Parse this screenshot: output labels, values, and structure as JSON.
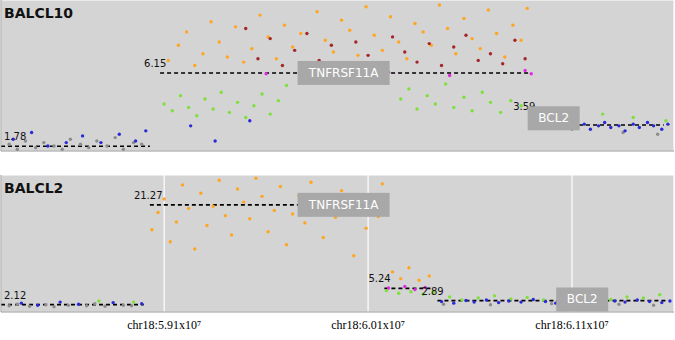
{
  "chart_data": [
    {
      "type": "scatter",
      "title": "BALCL10",
      "xlim": [
        58300000,
        61600000
      ],
      "xticks": [
        59100000,
        60100000,
        61100000
      ],
      "ylim": [
        1.5,
        10.5
      ],
      "yticks": [
        3,
        6,
        9
      ],
      "grid": true,
      "tick_labels": false,
      "marker": "circle",
      "series": [
        {
          "color": "#8c8c8c",
          "x": [
            58340000,
            58380000,
            58420000,
            58470000,
            58510000,
            58560000,
            58600000,
            58640000,
            58690000,
            58730000,
            58770000,
            58820000,
            58860000,
            58900000,
            58950000,
            58990000,
            61100000,
            61350000,
            61520000
          ],
          "values": [
            1.9,
            1.6,
            2.1,
            1.7,
            2.0,
            1.8,
            1.6,
            2.2,
            1.9,
            1.7,
            2.1,
            1.8,
            2.3,
            1.6,
            2.0,
            1.9,
            2.8,
            2.6,
            2.5
          ]
        },
        {
          "color": "#7ee03a",
          "x": [
            59100000,
            59140000,
            59180000,
            59220000,
            59260000,
            59300000,
            59340000,
            59380000,
            59420000,
            59460000,
            59500000,
            59540000,
            59580000,
            59620000,
            59660000,
            59700000,
            60260000,
            60300000,
            60340000,
            60390000,
            60430000,
            60480000,
            60520000,
            60570000,
            60610000,
            60660000,
            60700000,
            60750000,
            60800000,
            60850000,
            60920000,
            60960000,
            61000000,
            61050000,
            61250000,
            61400000,
            61560000
          ],
          "values": [
            4.3,
            3.9,
            4.8,
            4.1,
            3.6,
            4.6,
            4.0,
            5.0,
            3.8,
            4.4,
            3.5,
            4.2,
            4.9,
            3.7,
            4.5,
            5.4,
            4.6,
            5.2,
            4.0,
            4.8,
            4.3,
            5.5,
            4.1,
            4.7,
            3.9,
            5.0,
            4.4,
            3.8,
            4.5,
            4.2,
            3.6,
            4.0,
            3.4,
            3.8,
            3.7,
            3.5,
            3.3
          ]
        },
        {
          "color": "#ffa51f",
          "x": [
            59120000,
            59170000,
            59210000,
            59250000,
            59290000,
            59330000,
            59370000,
            59410000,
            59450000,
            59490000,
            59530000,
            59570000,
            59610000,
            59650000,
            59690000,
            59730000,
            59770000,
            59810000,
            59850000,
            59890000,
            59930000,
            59970000,
            60010000,
            60050000,
            60090000,
            60130000,
            60170000,
            60210000,
            60250000,
            60290000,
            60330000,
            60370000,
            60410000,
            60450000,
            60490000,
            60530000,
            60570000,
            60610000,
            60650000,
            60690000,
            60730000,
            60770000,
            60810000,
            60850000,
            60880000
          ],
          "values": [
            6.9,
            7.8,
            8.6,
            6.6,
            7.3,
            9.2,
            8.0,
            7.1,
            8.9,
            6.8,
            7.6,
            9.6,
            8.3,
            7.0,
            9.0,
            7.7,
            8.5,
            6.7,
            9.8,
            8.1,
            7.4,
            9.3,
            8.7,
            7.2,
            10.1,
            8.4,
            7.5,
            9.5,
            8.0,
            7.0,
            9.1,
            8.6,
            7.8,
            10.2,
            8.8,
            7.3,
            9.4,
            8.2,
            7.6,
            9.9,
            8.5,
            7.1,
            9.0,
            8.1,
            10.0
          ]
        },
        {
          "color": "#a5262a",
          "x": [
            59500000,
            59560000,
            59620000,
            59680000,
            59740000,
            59800000,
            59860000,
            59920000,
            59980000,
            60040000,
            60100000,
            60160000,
            60220000,
            60280000,
            60340000,
            60400000,
            60460000,
            60520000,
            60580000,
            60640000,
            60700000,
            60760000,
            60820000,
            60870000
          ],
          "values": [
            8.8,
            7.0,
            8.2,
            6.6,
            7.5,
            8.5,
            6.9,
            7.8,
            6.5,
            8.0,
            7.2,
            6.7,
            8.3,
            7.4,
            6.8,
            7.9,
            6.6,
            7.7,
            8.4,
            6.9,
            7.3,
            6.7,
            8.1,
            7.0
          ]
        },
        {
          "color": "#2a2ad8",
          "x": [
            58360000,
            58450000,
            58530000,
            58620000,
            58700000,
            58790000,
            58880000,
            58960000,
            59010000,
            59230000,
            59350000,
            59520000,
            61120000,
            61160000,
            61190000,
            61230000,
            61260000,
            61290000,
            61330000,
            61360000,
            61400000,
            61430000,
            61470000,
            61500000,
            61540000,
            61570000
          ],
          "values": [
            2.2,
            2.6,
            1.8,
            2.0,
            2.4,
            2.0,
            2.5,
            2.1,
            2.7,
            3.0,
            2.1,
            3.3,
            2.9,
            3.1,
            2.8,
            3.0,
            3.2,
            2.9,
            3.0,
            2.7,
            3.1,
            2.9,
            3.2,
            3.0,
            2.8,
            3.1
          ]
        },
        {
          "color": "#e02ae0",
          "x": [
            59600000,
            60200000,
            60500000,
            60870000,
            60900000,
            60990000,
            61020000
          ],
          "values": [
            6.1,
            6.2,
            6.0,
            6.3,
            6.1,
            3.7,
            3.5
          ]
        }
      ],
      "segments": [
        {
          "x": [
            58300000,
            59030000
          ],
          "value": 1.78
        },
        {
          "x": [
            59080000,
            60890000
          ],
          "value": 6.15
        },
        {
          "x": [
            60890000,
            61070000
          ],
          "value": 3.59
        },
        {
          "x": [
            61100000,
            61550000
          ],
          "value": 3.05
        }
      ],
      "annotations": [
        {
          "text": "TNFRSF11A",
          "x": 59980000,
          "y": 6.15
        },
        {
          "text": "BCL2",
          "x": 61010000,
          "y": 3.45
        }
      ]
    },
    {
      "type": "scatter",
      "title": "BALCL2",
      "xlim": [
        58300000,
        61600000
      ],
      "xticks": [
        {
          "value": 59100000,
          "label": "chr18:5.91x10⁷"
        },
        {
          "value": 60100000,
          "label": "chr18:6.01x10⁷"
        },
        {
          "value": 61100000,
          "label": "chr18:6.11x10⁷"
        }
      ],
      "ylim": [
        0.7,
        27
      ],
      "yticks": [
        10,
        20
      ],
      "grid": true,
      "tick_labels": "x",
      "marker": "circle",
      "series": [
        {
          "color": "#8c8c8c",
          "x": [
            58340000,
            58380000,
            58440000,
            58520000,
            58560000,
            58630000,
            58720000,
            58760000,
            58810000,
            58900000,
            58940000,
            60470000,
            60700000,
            61000000,
            61330000,
            61500000
          ],
          "values": [
            1.9,
            2.2,
            1.8,
            2.1,
            1.7,
            2.0,
            1.9,
            2.3,
            1.8,
            2.0,
            1.9,
            2.2,
            2.1,
            2.3,
            2.2,
            2.0
          ]
        },
        {
          "color": "#ffa51f",
          "x": [
            59040000,
            59070000,
            59100000,
            59130000,
            59160000,
            59190000,
            59220000,
            59250000,
            59280000,
            59310000,
            59340000,
            59370000,
            59400000,
            59430000,
            59460000,
            59490000,
            59520000,
            59550000,
            59580000,
            59610000,
            59640000,
            59670000,
            59700000,
            59730000,
            59760000,
            59790000,
            59820000,
            59850000,
            59880000,
            59910000,
            59940000,
            59970000,
            60000000,
            60030000,
            60060000,
            60090000,
            60120000,
            60150000,
            60170000,
            60220000,
            60260000,
            60300000,
            60350000,
            60400000
          ],
          "values": [
            16.5,
            19.8,
            22.4,
            14.2,
            18.0,
            25.1,
            20.6,
            12.8,
            23.5,
            17.3,
            21.0,
            26.0,
            19.2,
            15.5,
            24.3,
            21.8,
            18.6,
            26.4,
            22.9,
            16.1,
            20.2,
            24.8,
            13.6,
            19.5,
            23.0,
            17.8,
            25.6,
            21.4,
            15.0,
            22.1,
            18.9,
            24.0,
            20.0,
            11.5,
            23.2,
            16.8,
            21.6,
            19.0,
            25.3,
            8.4,
            7.1,
            9.2,
            6.8,
            7.6
          ]
        },
        {
          "color": "#e02ae0",
          "x": [
            60200000,
            60280000,
            60330000,
            60380000
          ],
          "values": [
            5.3,
            5.6,
            5.0,
            5.4
          ]
        },
        {
          "color": "#7ee03a",
          "x": [
            58780000,
            58950000,
            60190000,
            60250000,
            60310000,
            60370000,
            60420000,
            60500000,
            60560000,
            60640000,
            60720000,
            60800000,
            60880000,
            60960000,
            61050000,
            61130000,
            61210000,
            61290000,
            61370000,
            61450000,
            61530000
          ],
          "values": [
            2.8,
            2.6,
            4.8,
            4.3,
            4.6,
            4.1,
            4.5,
            3.6,
            3.0,
            3.4,
            3.8,
            3.2,
            3.5,
            3.0,
            3.7,
            3.3,
            3.9,
            3.1,
            3.6,
            3.4,
            4.0
          ]
        },
        {
          "color": "#2a2ad8",
          "x": [
            58400000,
            58480000,
            58590000,
            58680000,
            58850000,
            58990000,
            60460000,
            60520000,
            60580000,
            60620000,
            60680000,
            60740000,
            60790000,
            60850000,
            60910000,
            60970000,
            61020000,
            61080000,
            61140000,
            61190000,
            61250000,
            61310000,
            61360000,
            61420000,
            61480000,
            61540000,
            61580000
          ],
          "values": [
            2.4,
            2.0,
            2.6,
            2.2,
            2.5,
            2.3,
            2.7,
            2.4,
            2.9,
            2.6,
            3.0,
            2.5,
            2.8,
            2.6,
            3.1,
            2.7,
            2.4,
            2.9,
            2.6,
            3.0,
            2.5,
            2.8,
            2.6,
            3.0,
            2.7,
            2.5,
            2.8
          ]
        }
      ],
      "segments": [
        {
          "x": [
            58300000,
            59000000
          ],
          "value": 2.12
        },
        {
          "x": [
            59030000,
            60180000
          ],
          "value": 21.27
        },
        {
          "x": [
            60180000,
            60420000
          ],
          "value": 5.24
        },
        {
          "x": [
            60440000,
            61570000
          ],
          "value": 2.89
        }
      ],
      "annotations": [
        {
          "text": "TNFRSF11A",
          "x": 59980000,
          "y": 21.27
        },
        {
          "text": "BCL2",
          "x": 61150000,
          "y": 3.1
        }
      ]
    }
  ]
}
